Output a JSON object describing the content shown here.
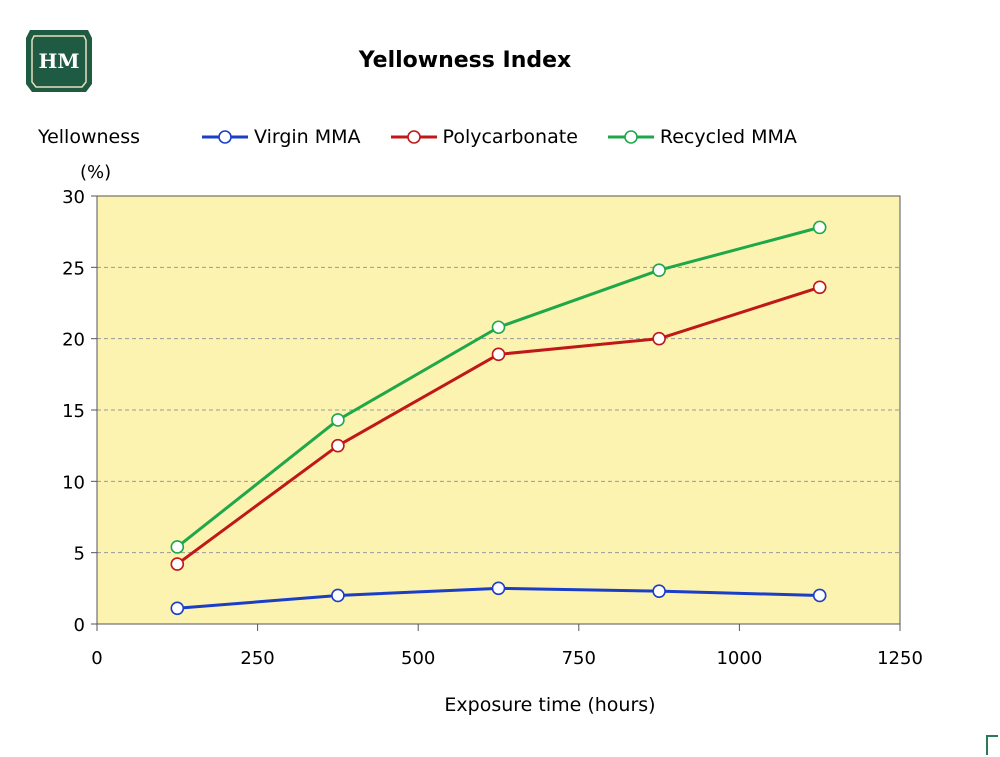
{
  "logo": {
    "text": "HM",
    "color": "#1f5a42"
  },
  "chart_data": {
    "type": "line",
    "title": "Yellowness Index",
    "ylabel": "Yellowness",
    "yunit": "(%)",
    "xlabel": "Exposure time (hours)",
    "x": [
      125,
      375,
      625,
      875,
      1125
    ],
    "xlim": [
      0,
      1250
    ],
    "ylim": [
      0,
      30
    ],
    "xticks": [
      0,
      250,
      500,
      750,
      1000,
      1250
    ],
    "yticks": [
      0,
      5,
      10,
      15,
      20,
      25,
      30
    ],
    "grid": "horizontal dashed",
    "background": "#fdf3b0",
    "legend_position": "top",
    "series": [
      {
        "name": "Virgin MMA",
        "color": "#1a3ec8",
        "values": [
          1.1,
          2.0,
          2.5,
          2.3,
          2.0
        ]
      },
      {
        "name": "Polycarbonate",
        "color": "#c01818",
        "values": [
          4.2,
          12.5,
          18.9,
          20.0,
          23.6
        ]
      },
      {
        "name": "Recycled MMA",
        "color": "#1fa84a",
        "values": [
          5.4,
          14.3,
          20.8,
          24.8,
          27.8
        ]
      }
    ]
  }
}
